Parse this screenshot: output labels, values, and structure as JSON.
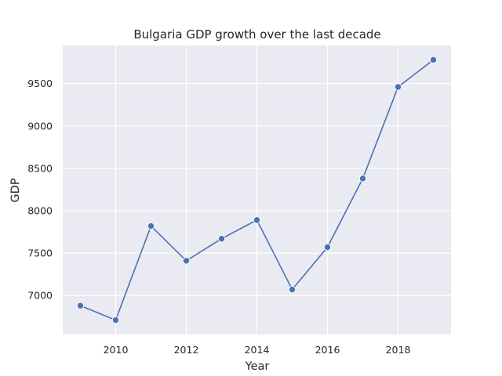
{
  "chart_data": {
    "type": "line",
    "title": "Bulgaria GDP growth over the last decade",
    "xlabel": "Year",
    "ylabel": "GDP",
    "x": [
      2009,
      2010,
      2011,
      2012,
      2013,
      2014,
      2015,
      2016,
      2017,
      2018,
      2019
    ],
    "series": [
      {
        "values": [
          6880,
          6710,
          7820,
          7410,
          7670,
          7890,
          7070,
          7570,
          8380,
          9460,
          9780
        ]
      }
    ],
    "xlim": [
      2008.5,
      2019.5
    ],
    "ylim": [
      6540,
      9950
    ],
    "x_ticks": [
      2010,
      2012,
      2014,
      2016,
      2018
    ],
    "y_ticks": [
      7000,
      7500,
      8000,
      8500,
      9000,
      9500
    ],
    "grid": true,
    "colors": {
      "background": "#eaeaf2",
      "grid": "#ffffff",
      "line": "#4c72b0"
    }
  }
}
